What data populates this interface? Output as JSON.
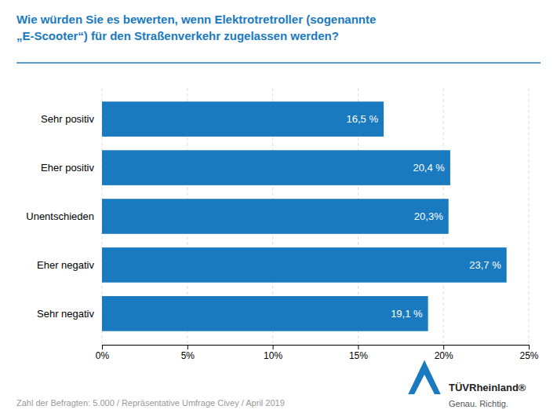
{
  "chart_data": {
    "type": "bar",
    "orientation": "horizontal",
    "title": "Wie würden Sie es bewerten, wenn Elektrotretroller (sogenannte\n„E-Scooter“) für den Straßenverkehr zugelassen werden?",
    "categories": [
      "Sehr positiv",
      "Eher positiv",
      "Unentschieden",
      "Eher negativ",
      "Sehr negativ"
    ],
    "values": [
      16.5,
      20.4,
      20.3,
      23.7,
      19.1
    ],
    "value_labels": [
      "16,5 %",
      "20,4 %",
      "20,3%",
      "23,7 %",
      "19,1 %"
    ],
    "data_labels": true,
    "color": "#1a7abf",
    "xlim": [
      0,
      25
    ],
    "xticks": [
      {
        "value": 0,
        "label": "0%"
      },
      {
        "value": 5,
        "label": "5%"
      },
      {
        "value": 10,
        "label": "10%"
      },
      {
        "value": 15,
        "label": "15%"
      },
      {
        "value": 20,
        "label": "20%"
      },
      {
        "value": 25,
        "label": "25%"
      }
    ],
    "grid": true,
    "annotations": [
      "Zahl der Befragten: 5.000 / Repräsentative Umfrage Civey / April 2019",
      "TÜVRheinland®",
      "Genau. Richtig."
    ]
  }
}
